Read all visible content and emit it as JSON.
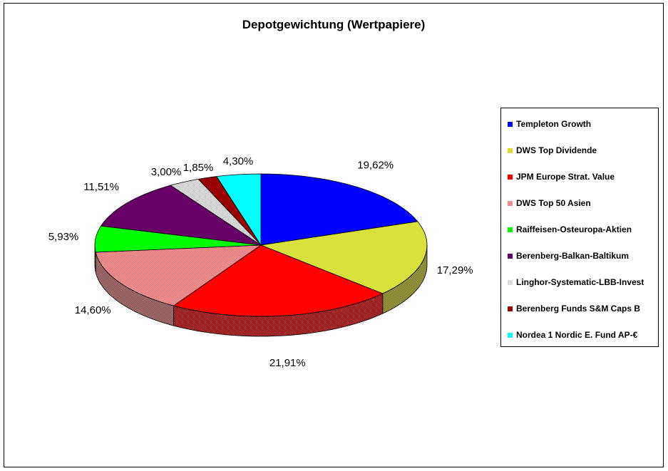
{
  "chart_data": {
    "type": "pie",
    "title": "Depotgewichtung (Wertpapiere)",
    "legend_position": "right",
    "slices": [
      {
        "name": "Templeton Growth",
        "value": 19.62,
        "label": "19,62%",
        "color": "#0000FF",
        "side": "#00007F"
      },
      {
        "name": "DWS Top Dividende",
        "value": 17.29,
        "label": "17,29%",
        "color": "#DCDC32",
        "side": "#6E6E19"
      },
      {
        "name": "JPM Europe Strat. Value",
        "value": 21.91,
        "label": "21,91%",
        "color": "#FF0000",
        "side": "#7F0000"
      },
      {
        "name": "DWS Top 50 Asien",
        "value": 14.6,
        "label": "14,60%",
        "color": "#F08C8C",
        "side": "#784646"
      },
      {
        "name": "Raiffeisen-Osteuropa-Aktien",
        "value": 5.93,
        "label": "5,93%",
        "color": "#00FF00",
        "side": "#007F00"
      },
      {
        "name": "Berenberg-Balkan-Baltikum",
        "value": 11.51,
        "label": "11,51%",
        "color": "#660066",
        "side": "#330033"
      },
      {
        "name": "Linghor-Systematic-LBB-Invest",
        "value": 3.0,
        "label": "3,00%",
        "color": "#DDDDDD",
        "side": "#8A8A8A"
      },
      {
        "name": "Berenberg Funds S&M Caps B",
        "value": 1.85,
        "label": "1,85%",
        "color": "#990000",
        "side": "#4C0000"
      },
      {
        "name": "Nordea 1 Nordic E. Fund AP-€",
        "value": 4.3,
        "label": "4,30%",
        "color": "#00FFFF",
        "side": "#007F7F"
      }
    ]
  }
}
